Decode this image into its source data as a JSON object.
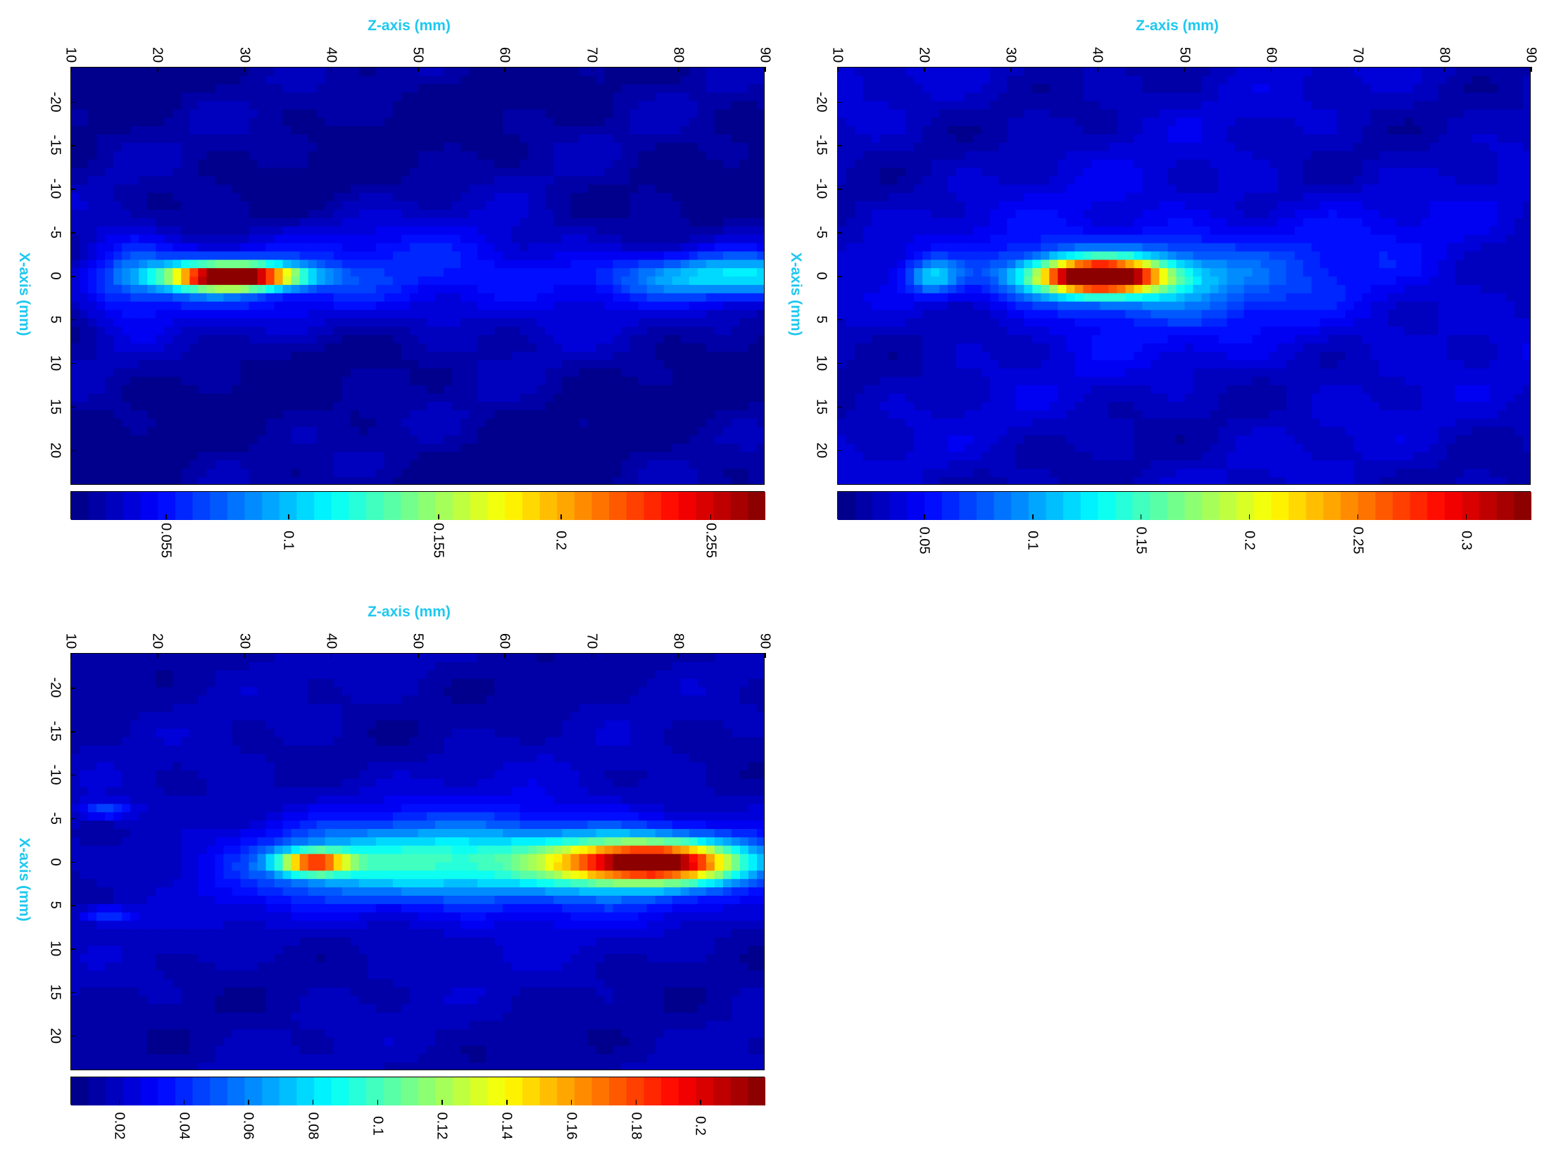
{
  "colors": {
    "axis_title": "#1ec8f0"
  },
  "chart_data": [
    {
      "type": "heatmap",
      "id": "top-left",
      "xlabel": "Z-axis (mm)",
      "ylabel": "X-axis (mm)",
      "z_ticks": [
        "10",
        "20",
        "30",
        "40",
        "50",
        "60",
        "70",
        "80",
        "90"
      ],
      "x_ticks": [
        "-20",
        "-15",
        "-10",
        "-5",
        "0",
        "5",
        "10",
        "15",
        "20"
      ],
      "zlim": [
        10,
        90
      ],
      "xlim": [
        -24,
        24
      ],
      "colorbar": {
        "min": 0.02,
        "max": 0.275,
        "ticks": [
          "0.055",
          "0.1",
          "0.155",
          "0.2",
          "0.255"
        ],
        "tick_values": [
          0.055,
          0.1,
          0.155,
          0.2,
          0.255
        ]
      },
      "blobs": [
        {
          "z": 29,
          "x": 0,
          "sz": 7,
          "sx": 1.3,
          "a": 0.25
        },
        {
          "z": 24,
          "x": 0,
          "sz": 8,
          "sx": 3,
          "a": 0.05
        },
        {
          "z": 88,
          "x": 0,
          "sz": 14,
          "sx": 2.5,
          "a": 0.075
        },
        {
          "z": 50,
          "x": 0,
          "sz": 30,
          "sx": 6,
          "a": 0.035
        },
        {
          "z": 16,
          "x": 0,
          "sz": 5,
          "sx": 6,
          "a": 0.03
        }
      ],
      "background": 0.035
    },
    {
      "type": "heatmap",
      "id": "top-right",
      "xlabel": "Z-axis (mm)",
      "ylabel": "X-axis (mm)",
      "z_ticks": [
        "10",
        "20",
        "30",
        "40",
        "50",
        "60",
        "70",
        "80",
        "90"
      ],
      "x_ticks": [
        "-20",
        "-15",
        "-10",
        "-5",
        "0",
        "5",
        "10",
        "15",
        "20"
      ],
      "zlim": [
        10,
        90
      ],
      "xlim": [
        -24,
        24
      ],
      "colorbar": {
        "min": 0.01,
        "max": 0.33,
        "ticks": [
          "0.05",
          "0.1",
          "0.15",
          "0.2",
          "0.25",
          "0.3"
        ],
        "tick_values": [
          0.05,
          0.1,
          0.15,
          0.2,
          0.25,
          0.3
        ]
      },
      "blobs": [
        {
          "z": 40,
          "x": 0,
          "sz": 7,
          "sx": 1.8,
          "a": 0.3
        },
        {
          "z": 42,
          "x": 0,
          "sz": 13,
          "sx": 3.5,
          "a": 0.08
        },
        {
          "z": 21,
          "x": 0,
          "sz": 3,
          "sx": 2,
          "a": 0.07
        },
        {
          "z": 55,
          "x": 0,
          "sz": 28,
          "sx": 9,
          "a": 0.03
        }
      ],
      "background": 0.04
    },
    {
      "type": "heatmap",
      "id": "bottom-left",
      "xlabel": "Z-axis (mm)",
      "ylabel": "X-axis (mm)",
      "z_ticks": [
        "10",
        "20",
        "30",
        "40",
        "50",
        "60",
        "70",
        "80",
        "90"
      ],
      "x_ticks": [
        "-20",
        "-15",
        "-10",
        "-5",
        "0",
        "5",
        "10",
        "15",
        "20"
      ],
      "zlim": [
        10,
        90
      ],
      "xlim": [
        -24,
        24
      ],
      "colorbar": {
        "min": 0.005,
        "max": 0.22,
        "ticks": [
          "0.02",
          "0.04",
          "0.06",
          "0.08",
          "0.1",
          "0.12",
          "0.14",
          "0.16",
          "0.18",
          "0.2"
        ],
        "tick_values": [
          0.02,
          0.04,
          0.06,
          0.08,
          0.1,
          0.12,
          0.14,
          0.16,
          0.18,
          0.2
        ]
      },
      "blobs": [
        {
          "z": 77,
          "x": 0,
          "sz": 10,
          "sx": 2.2,
          "a": 0.16
        },
        {
          "z": 72,
          "x": 0,
          "sz": 16,
          "sx": 4,
          "a": 0.06
        },
        {
          "z": 38,
          "x": 0,
          "sz": 4,
          "sx": 1.3,
          "a": 0.13
        },
        {
          "z": 48,
          "x": 0,
          "sz": 16,
          "sx": 4,
          "a": 0.055
        },
        {
          "z": 14,
          "x": -6,
          "sz": 3,
          "sx": 1,
          "a": 0.03
        },
        {
          "z": 14,
          "x": 6,
          "sz": 3,
          "sx": 1,
          "a": 0.03
        },
        {
          "z": 55,
          "x": 0,
          "sz": 30,
          "sx": 8,
          "a": 0.02
        }
      ],
      "background": 0.02
    }
  ]
}
